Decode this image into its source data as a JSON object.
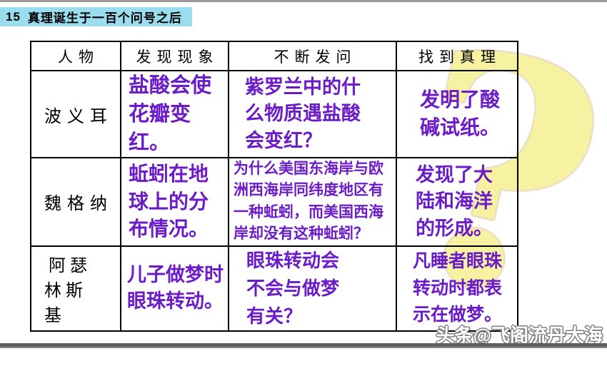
{
  "header": {
    "lesson_number": "15",
    "title": "真理诞生于一百个问号之后"
  },
  "watermark": {
    "question_mark_glyph": "?",
    "credit": "头条@飞阁流丹大海"
  },
  "colors": {
    "accent_purple": "#6b1cc8",
    "lesson_strip_cyan": "#9addef",
    "question_mark_yellow": "#f7f2a2",
    "question_mark_outline": "#ece1c2"
  },
  "table": {
    "columns": [
      "人物",
      "发现现象",
      "不断发问",
      "找到真理"
    ],
    "rows": [
      {
        "person": "波义耳",
        "phenomenon": "盐酸会使花瓣变红。",
        "question": "紫罗兰中的什么物质遇盐酸会变红？",
        "truth": "发明了酸碱试纸。"
      },
      {
        "person": "魏格纳",
        "phenomenon": "蚯蚓在地球上的分布情况。",
        "question": "为什么美国东海岸与欧洲西海岸同纬度地区有一种蚯蚓，而美国西海岸却没有这种蚯蚓？",
        "truth": "发现了大陆和海洋的形成。"
      },
      {
        "person": "阿瑟林斯基",
        "phenomenon": "儿子做梦时眼珠转动。",
        "question": "眼珠转动会不会与做梦有关？",
        "truth": "凡睡者眼珠转动时都表示在做梦。"
      }
    ]
  }
}
